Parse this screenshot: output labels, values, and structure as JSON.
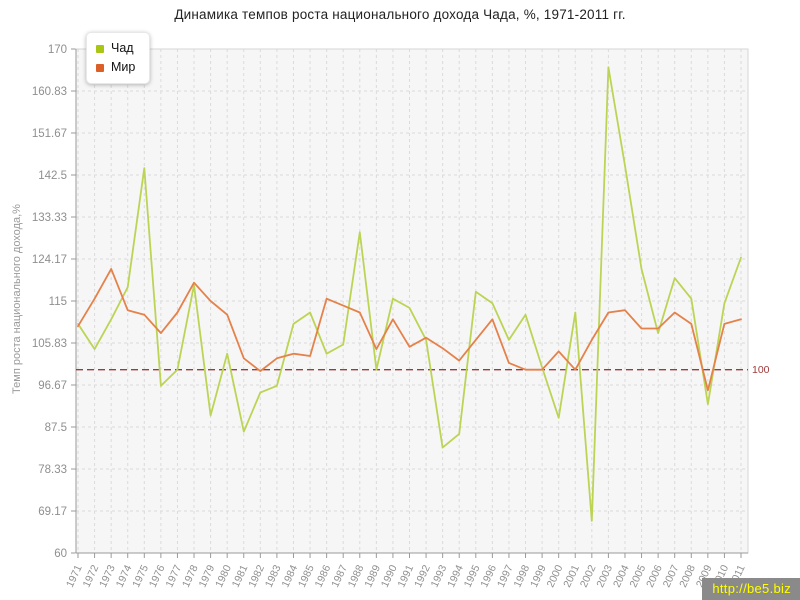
{
  "watermark": "http://be5.biz",
  "chart_data": {
    "type": "line",
    "title": "Динамика темпов роста национального дохода Чада, %, 1971-2011 гг.",
    "xlabel": "",
    "ylabel": "Темп роста национального дохода,%",
    "ylim": [
      60,
      170
    ],
    "y_ticks": [
      170,
      160.83,
      151.67,
      142.5,
      133.33,
      124.17,
      115,
      105.83,
      96.67,
      87.5,
      78.33,
      69.17,
      60
    ],
    "grid": true,
    "legend_position": "top-left",
    "reference_line": {
      "value": 100,
      "label": "100",
      "color": "#9d3b3b"
    },
    "categories": [
      1971,
      1972,
      1973,
      1974,
      1975,
      1976,
      1977,
      1978,
      1979,
      1980,
      1981,
      1982,
      1983,
      1984,
      1985,
      1986,
      1987,
      1988,
      1989,
      1990,
      1991,
      1992,
      1993,
      1994,
      1995,
      1996,
      1997,
      1998,
      1999,
      2000,
      2001,
      2002,
      2003,
      2004,
      2005,
      2006,
      2007,
      2008,
      2009,
      2010,
      2011
    ],
    "series": [
      {
        "name": "Чад",
        "color": "#bcd455",
        "swatch": "#a8c613",
        "values": [
          110,
          104.5,
          111,
          118,
          144,
          96.5,
          100,
          118.5,
          90,
          103.5,
          86.5,
          95,
          96.5,
          110,
          112.5,
          103.5,
          105.5,
          130,
          100,
          115.5,
          113.5,
          106.5,
          83,
          86,
          117,
          114.5,
          106.5,
          112,
          100.5,
          89.5,
          112.5,
          67,
          166,
          144.5,
          122,
          108,
          120,
          115.5,
          92.5,
          114.5,
          124.5
        ]
      },
      {
        "name": "Мир",
        "color": "#e5814a",
        "swatch": "#dc5f28",
        "values": [
          109.5,
          115.5,
          122,
          113,
          112,
          108,
          112.5,
          119,
          115,
          112,
          102.5,
          99.7,
          102.5,
          103.5,
          103,
          115.5,
          114,
          112.5,
          104.5,
          111,
          105,
          107,
          104.7,
          102,
          106.5,
          111,
          101.5,
          100,
          100,
          104,
          100,
          106.5,
          112.5,
          113,
          109,
          109,
          112.5,
          110,
          95.5,
          110,
          111
        ]
      }
    ]
  },
  "style": {
    "plot_bg": "#f6f6f6",
    "grid_color": "#dbdbdb",
    "border_color": "#d6d6d6",
    "axis_color": "#9a9a9a",
    "tick_text_color": "#8f8f8f"
  }
}
